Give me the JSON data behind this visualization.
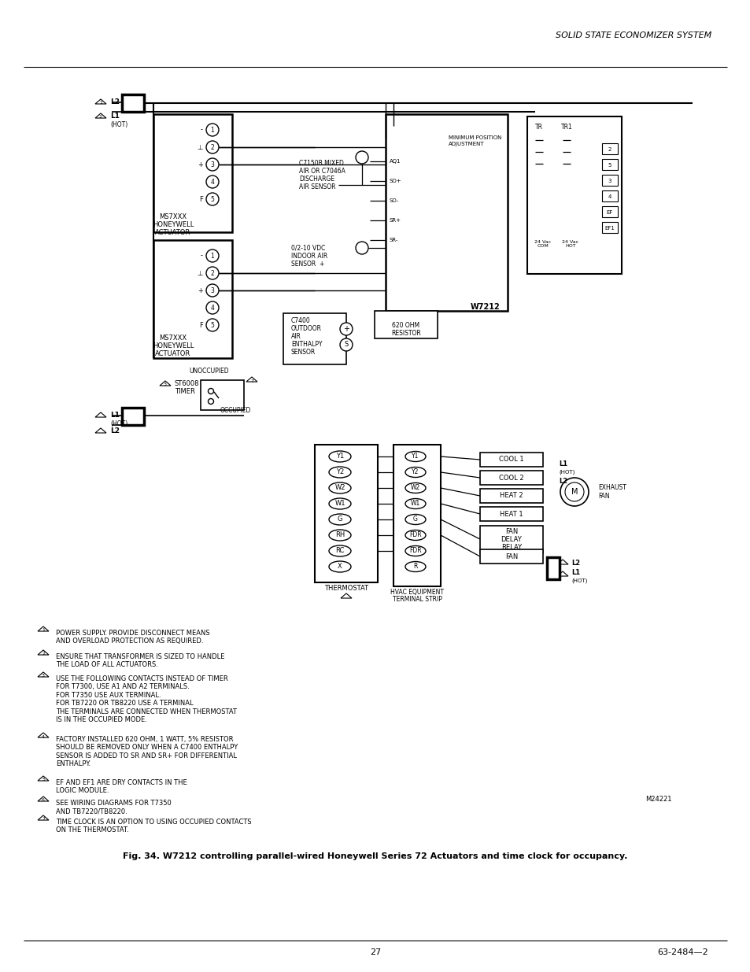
{
  "title": "SOLID STATE ECONOMIZER SYSTEM",
  "page_number": "27",
  "doc_number": "63-2484—2",
  "fig_caption": "Fig. 34. W7212 controlling parallel-wired Honeywell Series 72 Actuators and time clock for occupancy.",
  "background_color": "#ffffff",
  "line_color": "#000000",
  "notes": [
    "POWER SUPPLY. PROVIDE DISCONNECT MEANS\nAND OVERLOAD PROTECTION AS REQUIRED.",
    "ENSURE THAT TRANSFORMER IS SIZED TO HANDLE\nTHE LOAD OF ALL ACTUATORS.",
    "USE THE FOLLOWING CONTACTS INSTEAD OF TIMER\nFOR T7300, USE A1 AND A2 TERMINALS.\nFOR T7350 USE AUX TERMINAL.\nFOR TB7220 OR TB8220 USE A TERMINAL\nTHE TERMINALS ARE CONNECTED WHEN THERMOSTAT\nIS IN THE OCCUPIED MODE.",
    "FACTORY INSTALLED 620 OHM, 1 WATT, 5% RESISTOR\nSHOULD BE REMOVED ONLY WHEN A C7400 ENTHALPY\nSENSOR IS ADDED TO SR AND SR+ FOR DIFFERENTIAL\nENTHALPY.",
    "EF AND EF1 ARE DRY CONTACTS IN THE\nLOGIC MODULE.",
    "SEE WIRING DIAGRAMS FOR T7350\nAND TB7220/TB8220.",
    "TIME CLOCK IS AN OPTION TO USING OCCUPIED CONTACTS\nON THE THERMOSTAT."
  ],
  "note_numbers": [
    "1",
    "2",
    "3",
    "4",
    "5",
    "6",
    "7"
  ]
}
